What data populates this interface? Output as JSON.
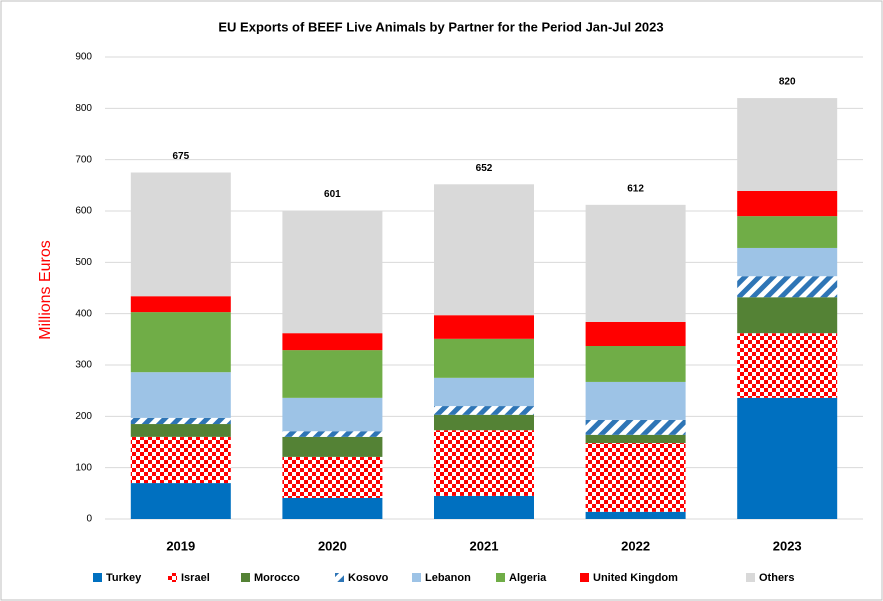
{
  "chart_data": {
    "type": "stacked_bar",
    "title": "EU Exports of BEEF Live Animals by Partner for the Period Jan-Jul 2023",
    "y_label": "Millions Euros",
    "categories": [
      "2019",
      "2020",
      "2021",
      "2022",
      "2023"
    ],
    "series": [
      {
        "name": "Turkey",
        "color": "#0070c0",
        "values": [
          70,
          41,
          45,
          14,
          236
        ]
      },
      {
        "name": "Israel",
        "color": "#ff0000",
        "pattern": "checker",
        "values": [
          90,
          80,
          128,
          134,
          126
        ]
      },
      {
        "name": "Morocco",
        "color": "#548235",
        "values": [
          25,
          39,
          30,
          16,
          70
        ]
      },
      {
        "name": "Kosovo",
        "color": "#2e75b6",
        "pattern": "stripes",
        "values": [
          12,
          11,
          17,
          29,
          41
        ]
      },
      {
        "name": "Lebanon",
        "color": "#9dc3e6",
        "values": [
          89,
          65,
          55,
          74,
          55
        ]
      },
      {
        "name": "Algeria",
        "color": "#70ad47",
        "values": [
          117,
          93,
          76,
          70,
          62
        ]
      },
      {
        "name": "United Kingdom",
        "color": "#ff0000",
        "values": [
          31,
          33,
          46,
          47,
          49
        ]
      },
      {
        "name": "Others",
        "color": "#d9d9d9",
        "values": [
          241,
          239,
          255,
          228,
          181
        ]
      }
    ],
    "totals": [
      675,
      601,
      652,
      612,
      820
    ],
    "ylim": [
      0,
      900
    ],
    "yticks": [
      0,
      100,
      200,
      300,
      400,
      500,
      600,
      700,
      800,
      900
    ],
    "grid": true,
    "legend": "bottom"
  }
}
